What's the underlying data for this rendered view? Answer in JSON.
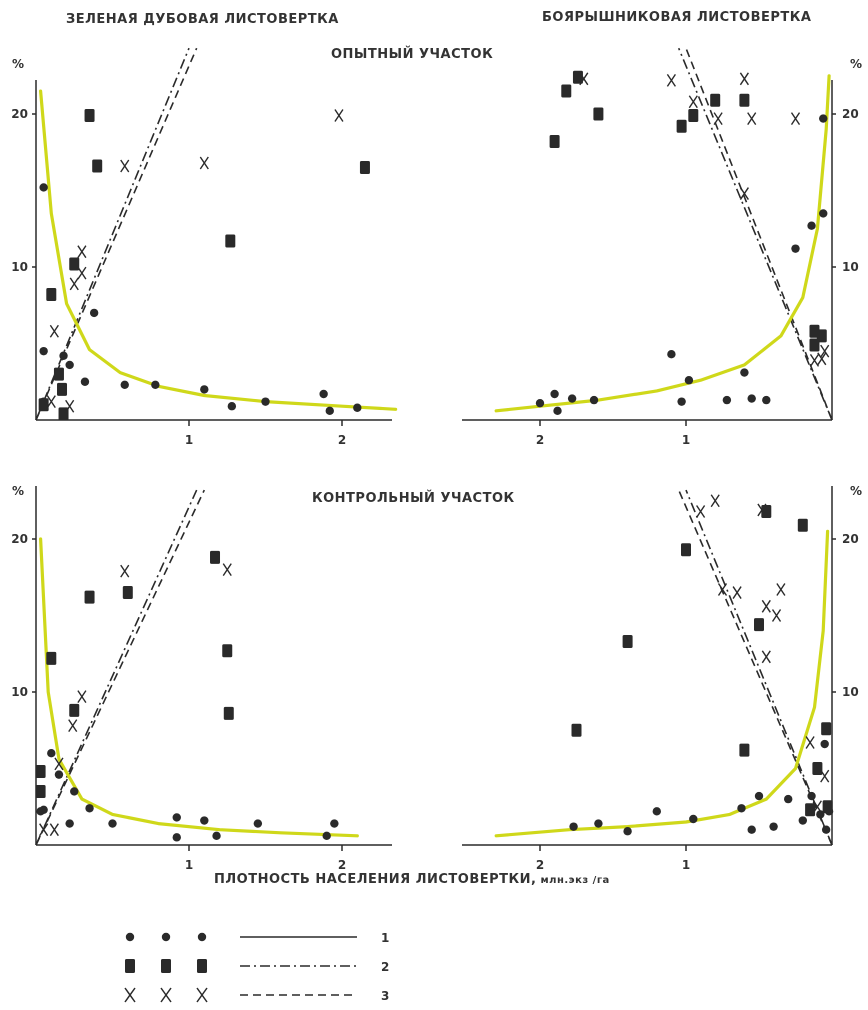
{
  "titles": {
    "left": "ЗЕЛЕНАЯ ДУБОВАЯ ЛИСТОВЕРТКА",
    "right": "БОЯРЫШНИКОВАЯ ЛИСТОВЕРТКА",
    "top": "ОПЫТНЫЙ УЧАСТОК",
    "bottom": "КОНТРОЛЬНЫЙ УЧАСТОК",
    "xlabel_main": "ПЛОТНОСТЬ НАСЕЛЕНИЯ ЛИСТОВЕРТКИ,",
    "xlabel_unit": " млн.экз /га"
  },
  "legend": [
    {
      "marker": "•",
      "label": "1"
    },
    {
      "marker": "▮",
      "label": "2"
    },
    {
      "marker": "X",
      "label": "3"
    }
  ],
  "colors": {
    "curve": "#cfd81a",
    "ink": "#2a2a2a"
  },
  "chart_data": [
    {
      "type": "scatter",
      "panel": "ЗЕЛЕНАЯ ДУБОВАЯ ЛИСТОВЕРТКА — ОПЫТНЫЙ УЧАСТОК",
      "x_direction": "increasing-right",
      "y_unit": "%",
      "xlim": [
        0,
        2.35
      ],
      "ylim": [
        0,
        22
      ],
      "x_ticks": [
        "1",
        "2"
      ],
      "y_ticks": [
        "10",
        "20"
      ],
      "series": [
        {
          "name": "1",
          "marker": "dot",
          "line": "solid",
          "points": [
            [
              0.05,
              15.2
            ],
            [
              0.05,
              4.5
            ],
            [
              0.18,
              4.2
            ],
            [
              0.22,
              3.6
            ],
            [
              0.32,
              2.5
            ],
            [
              0.38,
              7.0
            ],
            [
              0.58,
              2.3
            ],
            [
              0.78,
              2.3
            ],
            [
              1.1,
              2.0
            ],
            [
              1.28,
              0.9
            ],
            [
              1.5,
              1.2
            ],
            [
              1.88,
              1.7
            ],
            [
              1.92,
              0.6
            ],
            [
              2.1,
              0.8
            ],
            [
              0.05,
              1.2
            ]
          ]
        },
        {
          "name": "2",
          "marker": "square",
          "line": "dash-dot",
          "points": [
            [
              0.05,
              1.0
            ],
            [
              0.1,
              8.2
            ],
            [
              0.15,
              3.0
            ],
            [
              0.17,
              2.0
            ],
            [
              0.18,
              0.4
            ],
            [
              0.25,
              10.2
            ],
            [
              0.35,
              19.9
            ],
            [
              0.4,
              16.6
            ],
            [
              1.27,
              11.7
            ],
            [
              2.15,
              16.5
            ]
          ]
        },
        {
          "name": "3",
          "marker": "x",
          "line": "dashed",
          "points": [
            [
              0.1,
              1.2
            ],
            [
              0.12,
              5.8
            ],
            [
              0.22,
              0.9
            ],
            [
              0.25,
              8.9
            ],
            [
              0.3,
              11.0
            ],
            [
              0.3,
              9.6
            ],
            [
              0.58,
              16.6
            ],
            [
              1.1,
              16.8
            ],
            [
              1.98,
              19.9
            ]
          ]
        }
      ],
      "fit_curve": [
        [
          0.03,
          21.5
        ],
        [
          0.1,
          13.5
        ],
        [
          0.2,
          7.6
        ],
        [
          0.35,
          4.6
        ],
        [
          0.55,
          3.1
        ],
        [
          0.8,
          2.2
        ],
        [
          1.1,
          1.6
        ],
        [
          1.5,
          1.2
        ],
        [
          2.0,
          0.9
        ],
        [
          2.35,
          0.7
        ]
      ]
    },
    {
      "type": "scatter",
      "panel": "БОЯРЫШНИКОВАЯ ЛИСТОВЕРТКА — ОПЫТНЫЙ УЧАСТОК",
      "x_direction": "decreasing-right",
      "y_unit": "%",
      "xlim": [
        0,
        2.5
      ],
      "ylim": [
        0,
        22
      ],
      "x_ticks": [
        "2",
        "1"
      ],
      "y_ticks": [
        "10",
        "20"
      ],
      "series": [
        {
          "name": "1",
          "marker": "dot",
          "line": "solid",
          "points": [
            [
              2.0,
              1.1
            ],
            [
              1.9,
              1.7
            ],
            [
              1.88,
              0.6
            ],
            [
              1.78,
              1.4
            ],
            [
              1.63,
              1.3
            ],
            [
              1.1,
              4.3
            ],
            [
              1.03,
              1.2
            ],
            [
              0.98,
              2.6
            ],
            [
              0.72,
              1.3
            ],
            [
              0.6,
              3.1
            ],
            [
              0.55,
              1.4
            ],
            [
              0.45,
              1.3
            ],
            [
              0.25,
              11.2
            ],
            [
              0.14,
              12.7
            ],
            [
              0.06,
              13.5
            ],
            [
              0.06,
              19.7
            ]
          ]
        },
        {
          "name": "2",
          "marker": "square",
          "line": "dash-dot",
          "points": [
            [
              1.9,
              18.2
            ],
            [
              1.82,
              21.5
            ],
            [
              1.74,
              22.4
            ],
            [
              1.6,
              20.0
            ],
            [
              1.03,
              19.2
            ],
            [
              0.95,
              19.9
            ],
            [
              0.8,
              20.9
            ],
            [
              0.6,
              20.9
            ],
            [
              0.12,
              5.8
            ],
            [
              0.12,
              4.9
            ],
            [
              0.07,
              5.5
            ]
          ]
        },
        {
          "name": "3",
          "marker": "x",
          "line": "dashed",
          "points": [
            [
              1.7,
              22.3
            ],
            [
              1.1,
              22.2
            ],
            [
              0.95,
              20.8
            ],
            [
              0.78,
              19.7
            ],
            [
              0.6,
              22.3
            ],
            [
              0.55,
              19.7
            ],
            [
              0.6,
              14.8
            ],
            [
              0.25,
              19.7
            ],
            [
              0.07,
              4.0
            ],
            [
              0.12,
              3.9
            ],
            [
              0.05,
              4.5
            ]
          ]
        }
      ],
      "fit_curve": [
        [
          2.3,
          0.6
        ],
        [
          2.0,
          0.9
        ],
        [
          1.6,
          1.3
        ],
        [
          1.2,
          1.9
        ],
        [
          0.9,
          2.6
        ],
        [
          0.6,
          3.6
        ],
        [
          0.35,
          5.5
        ],
        [
          0.2,
          8.0
        ],
        [
          0.1,
          12.5
        ],
        [
          0.04,
          19.0
        ],
        [
          0.02,
          22.5
        ]
      ]
    },
    {
      "type": "scatter",
      "panel": "ЗЕЛЕНАЯ ДУБОВАЯ ЛИСТОВЕРТКА — КОНТРОЛЬНЫЙ УЧАСТОК",
      "x_direction": "increasing-right",
      "y_unit": "%",
      "xlim": [
        0,
        2.35
      ],
      "ylim": [
        0,
        22
      ],
      "x_ticks": [
        "1",
        "2"
      ],
      "y_ticks": [
        "10",
        "20"
      ],
      "series": [
        {
          "name": "1",
          "marker": "dot",
          "line": "solid",
          "points": [
            [
              0.03,
              2.2
            ],
            [
              0.1,
              6.0
            ],
            [
              0.15,
              4.6
            ],
            [
              0.22,
              1.4
            ],
            [
              0.25,
              3.5
            ],
            [
              0.35,
              2.4
            ],
            [
              0.5,
              1.4
            ],
            [
              0.92,
              1.8
            ],
            [
              0.92,
              0.5
            ],
            [
              1.1,
              1.6
            ],
            [
              1.18,
              0.6
            ],
            [
              1.45,
              1.4
            ],
            [
              1.9,
              0.6
            ],
            [
              1.95,
              1.4
            ],
            [
              0.05,
              2.3
            ]
          ]
        },
        {
          "name": "2",
          "marker": "square",
          "line": "dash-dot",
          "points": [
            [
              0.03,
              4.8
            ],
            [
              0.03,
              3.5
            ],
            [
              0.1,
              12.2
            ],
            [
              0.25,
              8.8
            ],
            [
              0.35,
              16.2
            ],
            [
              0.6,
              16.5
            ],
            [
              1.17,
              18.8
            ],
            [
              1.25,
              12.7
            ],
            [
              1.26,
              8.6
            ]
          ]
        },
        {
          "name": "3",
          "marker": "x",
          "line": "dashed",
          "points": [
            [
              0.05,
              1.0
            ],
            [
              0.12,
              1.0
            ],
            [
              0.15,
              5.3
            ],
            [
              0.24,
              7.8
            ],
            [
              0.3,
              9.7
            ],
            [
              0.58,
              17.9
            ],
            [
              1.25,
              18.0
            ]
          ]
        }
      ],
      "fit_curve": [
        [
          0.03,
          20.0
        ],
        [
          0.08,
          10.0
        ],
        [
          0.15,
          5.6
        ],
        [
          0.3,
          3.0
        ],
        [
          0.5,
          2.0
        ],
        [
          0.8,
          1.4
        ],
        [
          1.2,
          1.0
        ],
        [
          1.6,
          0.8
        ],
        [
          2.1,
          0.6
        ]
      ]
    },
    {
      "type": "scatter",
      "panel": "БОЯРЫШНИКОВАЯ ЛИСТОВЕРТКА — КОНТРОЛЬНЫЙ УЧАСТОК",
      "x_direction": "decreasing-right",
      "y_unit": "%",
      "xlim": [
        0,
        2.5
      ],
      "ylim": [
        0,
        22
      ],
      "x_ticks": [
        "2",
        "1"
      ],
      "y_ticks": [
        "10",
        "20"
      ],
      "series": [
        {
          "name": "1",
          "marker": "dot",
          "line": "solid",
          "points": [
            [
              1.77,
              1.2
            ],
            [
              1.6,
              1.4
            ],
            [
              1.4,
              0.9
            ],
            [
              1.2,
              2.2
            ],
            [
              0.95,
              1.7
            ],
            [
              0.62,
              2.4
            ],
            [
              0.55,
              1.0
            ],
            [
              0.5,
              3.2
            ],
            [
              0.4,
              1.2
            ],
            [
              0.3,
              3.0
            ],
            [
              0.2,
              1.6
            ],
            [
              0.14,
              3.2
            ],
            [
              0.08,
              2.0
            ],
            [
              0.05,
              6.6
            ],
            [
              0.04,
              7.5
            ],
            [
              0.04,
              1.0
            ],
            [
              0.02,
              2.2
            ]
          ]
        },
        {
          "name": "2",
          "marker": "square",
          "line": "dash-dot",
          "points": [
            [
              1.75,
              7.5
            ],
            [
              1.4,
              13.3
            ],
            [
              1.0,
              19.3
            ],
            [
              0.6,
              6.2
            ],
            [
              0.5,
              14.4
            ],
            [
              0.45,
              21.8
            ],
            [
              0.2,
              20.9
            ],
            [
              0.1,
              5.0
            ],
            [
              0.04,
              7.6
            ],
            [
              0.03,
              2.5
            ],
            [
              0.15,
              2.3
            ]
          ]
        },
        {
          "name": "3",
          "marker": "x",
          "line": "dashed",
          "points": [
            [
              0.9,
              21.8
            ],
            [
              0.8,
              22.5
            ],
            [
              0.75,
              16.7
            ],
            [
              0.65,
              16.5
            ],
            [
              0.48,
              21.9
            ],
            [
              0.45,
              15.6
            ],
            [
              0.38,
              15.0
            ],
            [
              0.35,
              16.7
            ],
            [
              0.45,
              12.3
            ],
            [
              0.15,
              6.7
            ],
            [
              0.1,
              2.5
            ],
            [
              0.05,
              4.5
            ]
          ]
        }
      ],
      "fit_curve": [
        [
          2.3,
          0.6
        ],
        [
          1.8,
          1.0
        ],
        [
          1.4,
          1.2
        ],
        [
          1.0,
          1.5
        ],
        [
          0.7,
          2.0
        ],
        [
          0.45,
          3.0
        ],
        [
          0.25,
          5.0
        ],
        [
          0.12,
          9.0
        ],
        [
          0.06,
          14.0
        ],
        [
          0.03,
          20.5
        ]
      ]
    }
  ]
}
